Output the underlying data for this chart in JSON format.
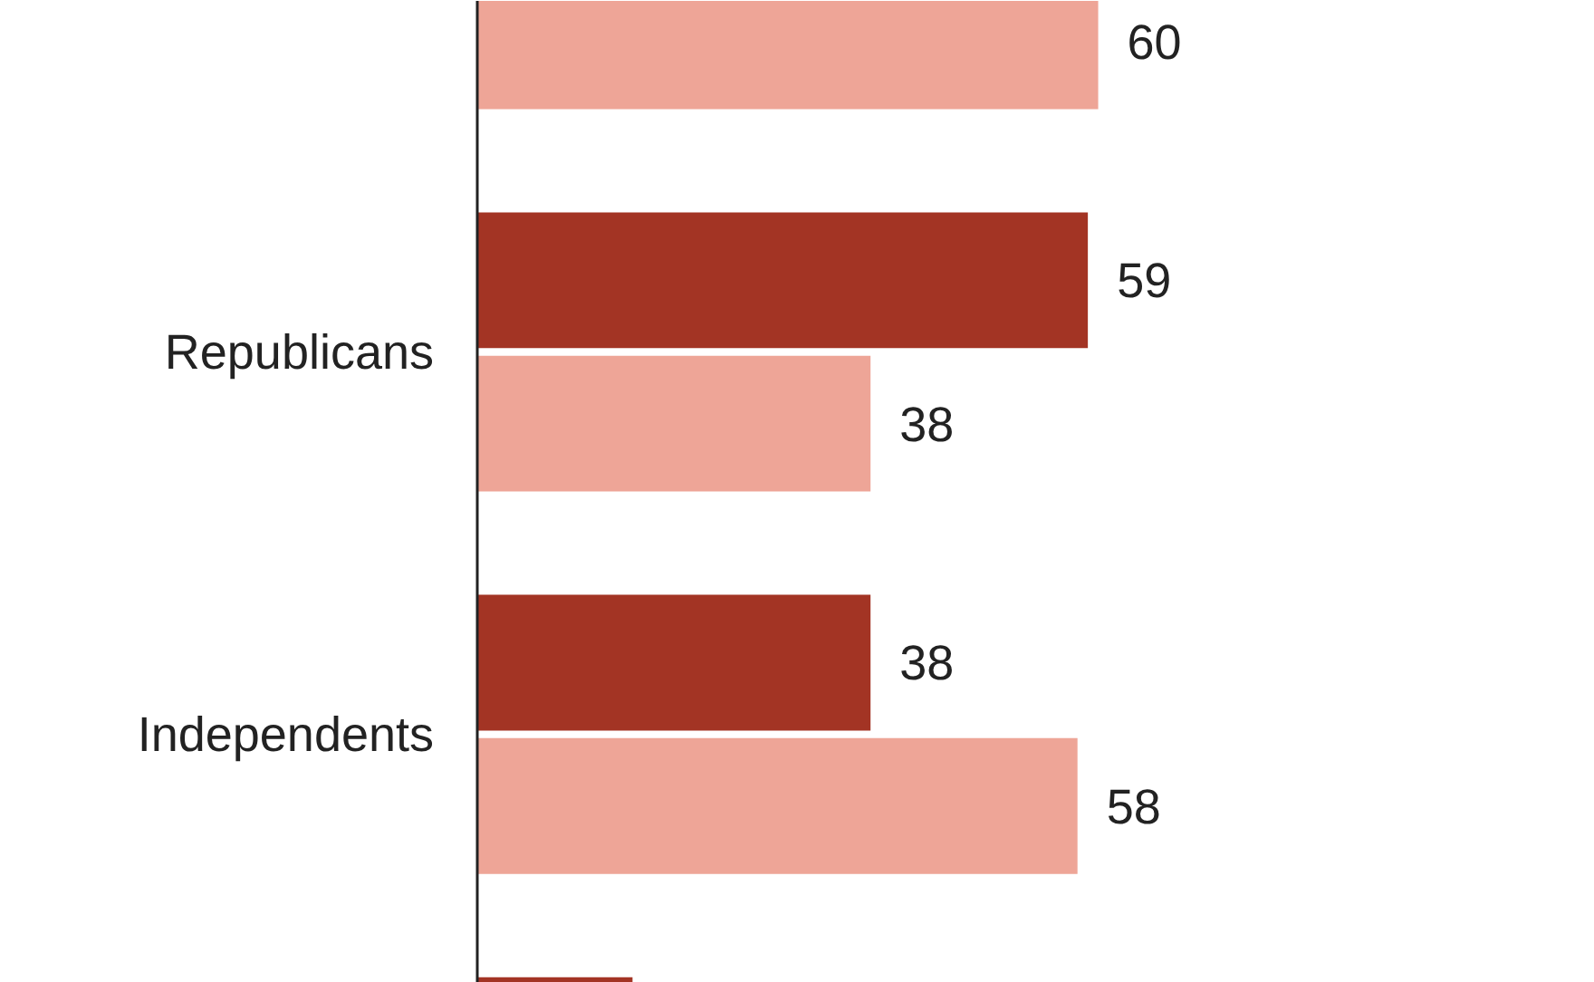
{
  "chart_data": {
    "type": "bar",
    "orientation": "horizontal",
    "categories": [
      null,
      "Republicans",
      "Independents",
      null
    ],
    "series": [
      {
        "color": "#a33424",
        "values": [
          null,
          59,
          38,
          15
        ],
        "value_labels": [
          null,
          "59",
          "38",
          null
        ]
      },
      {
        "color": "#eea597",
        "values": [
          60,
          38,
          58,
          null
        ],
        "value_labels": [
          "60",
          "38",
          "58",
          null
        ]
      }
    ],
    "tick_labels": "y"
  }
}
